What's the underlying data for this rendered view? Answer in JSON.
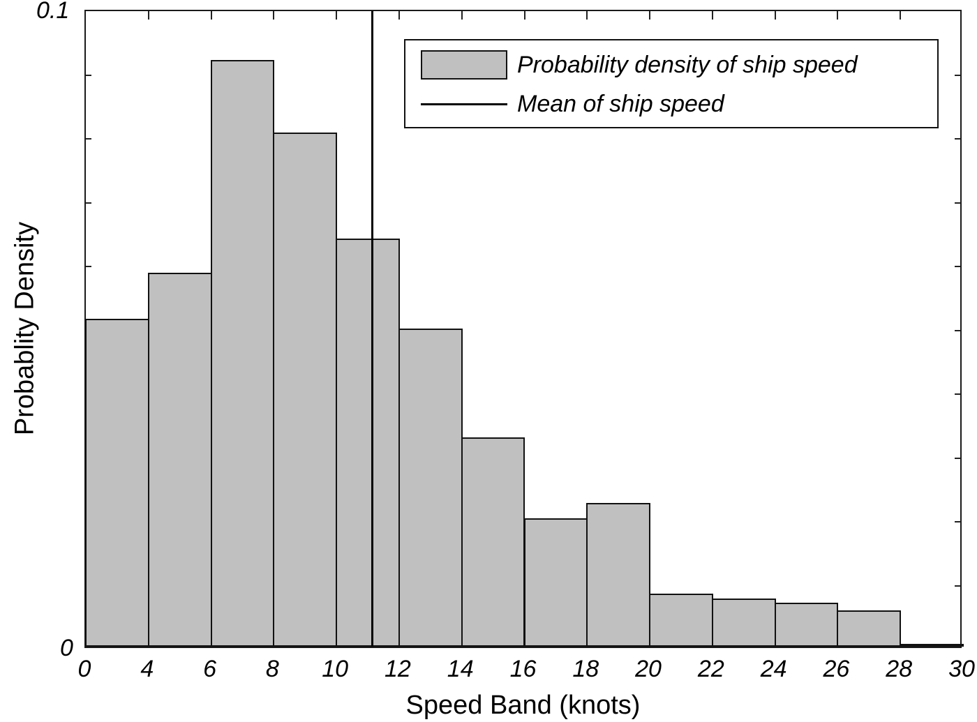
{
  "chart_data": {
    "type": "bar",
    "title": "",
    "xlabel": "Speed Band (knots)",
    "ylabel": "Probablity Density",
    "ylim": [
      0,
      0.1
    ],
    "ytick_labels": [
      "0",
      "0.1"
    ],
    "xtick_labels": [
      "0",
      "4",
      "6",
      "8",
      "10",
      "12",
      "14",
      "16",
      "18",
      "20",
      "22",
      "24",
      "26",
      "28",
      "30"
    ],
    "categories": [
      "0-4",
      "4-6",
      "6-8",
      "8-10",
      "10-12",
      "12-14",
      "14-16",
      "16-18",
      "18-20",
      "20-22",
      "22-24",
      "24-26",
      "26-28",
      "28-30"
    ],
    "series": [
      {
        "name": "Probability density of ship speed",
        "color": "#c0c0c0",
        "values": [
          0.0514,
          0.0586,
          0.0919,
          0.0805,
          0.0639,
          0.0498,
          0.0328,
          0.0201,
          0.0225,
          0.0083,
          0.0075,
          0.0069,
          0.0057,
          0.0003
        ]
      }
    ],
    "mean_line": {
      "name": "Mean of ship speed",
      "x": 11.15,
      "color": "#000000"
    },
    "legend": {
      "position": "upper right",
      "entries": [
        "Probability density of ship speed",
        "Mean of ship speed"
      ]
    },
    "grid": false
  },
  "axes": {
    "xlabel": "Speed Band (knots)",
    "ylabel": "Probablity Density",
    "ymax_label": "0.1",
    "ymin_label": "0"
  },
  "legend": {
    "bar_label": "Probability density of ship speed",
    "line_label": "Mean of ship speed"
  }
}
